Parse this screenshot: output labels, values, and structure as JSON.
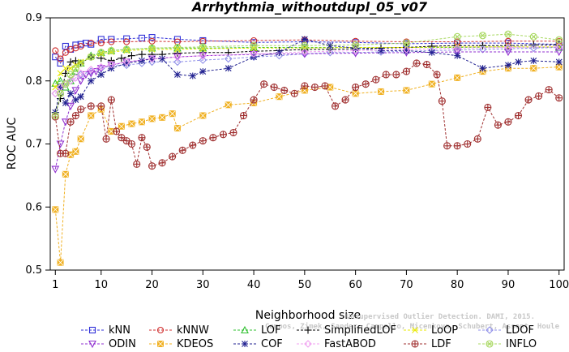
{
  "chart_data": {
    "type": "line",
    "title": "Arrhythmia_withoutdupl_05_v07",
    "xlabel": "Neighborhood size",
    "ylabel": "ROC AUC",
    "xlim": [
      0,
      101
    ],
    "ylim": [
      0.5,
      0.9
    ],
    "xticks": [
      1,
      10,
      20,
      30,
      40,
      50,
      60,
      70,
      80,
      90,
      100
    ],
    "yticks": [
      0.5,
      0.6,
      0.7,
      0.8,
      0.9
    ],
    "xtick_labels": [
      "1",
      "10",
      "20",
      "30",
      "40",
      "50",
      "60",
      "70",
      "80",
      "90",
      "100"
    ],
    "ytick_labels": [
      "0.5",
      "0.6",
      "0.7",
      "0.8",
      "0.9"
    ],
    "grid": false,
    "legend_position": "bottom",
    "watermark": [
      "Unsupervised Outlier Detection. DAMI, 2015.",
      "Campos, Zimek, Sander, Campello, Micenkova, Schubert, Assent, Houle"
    ],
    "series": [
      {
        "name": "kNN",
        "color": "#3030d8",
        "marker": "square",
        "x": [
          1,
          2,
          3,
          4,
          5,
          6,
          7,
          8,
          10,
          12,
          15,
          18,
          20,
          25,
          30,
          40,
          50,
          60,
          70,
          80,
          90,
          100
        ],
        "y": [
          0.838,
          0.828,
          0.855,
          0.85,
          0.857,
          0.858,
          0.86,
          0.858,
          0.866,
          0.866,
          0.867,
          0.868,
          0.869,
          0.866,
          0.864,
          0.861,
          0.862,
          0.861,
          0.859,
          0.86,
          0.86,
          0.858
        ]
      },
      {
        "name": "kNNW",
        "color": "#d03030",
        "marker": "circle",
        "x": [
          1,
          2,
          3,
          4,
          5,
          6,
          8,
          10,
          12,
          15,
          20,
          25,
          30,
          40,
          50,
          60,
          70,
          80,
          90,
          100
        ],
        "y": [
          0.848,
          0.835,
          0.845,
          0.85,
          0.852,
          0.855,
          0.86,
          0.86,
          0.862,
          0.862,
          0.863,
          0.862,
          0.863,
          0.864,
          0.865,
          0.863,
          0.862,
          0.862,
          0.863,
          0.863
        ]
      },
      {
        "name": "LOF",
        "color": "#30c030",
        "marker": "triangle-up",
        "x": [
          1,
          2,
          3,
          4,
          5,
          6,
          8,
          10,
          12,
          15,
          20,
          25,
          30,
          40,
          50,
          60,
          70,
          80,
          90,
          100
        ],
        "y": [
          0.796,
          0.8,
          0.79,
          0.8,
          0.815,
          0.828,
          0.84,
          0.845,
          0.848,
          0.85,
          0.852,
          0.852,
          0.852,
          0.853,
          0.853,
          0.853,
          0.853,
          0.853,
          0.854,
          0.853
        ]
      },
      {
        "name": "SimplifiedLOF",
        "color": "#000000",
        "marker": "plus",
        "x": [
          1,
          2,
          3,
          4,
          5,
          6,
          8,
          10,
          12,
          14,
          16,
          18,
          20,
          22,
          25,
          30,
          35,
          40,
          45,
          50,
          55,
          60,
          65,
          70,
          75,
          80,
          85,
          90,
          95,
          100
        ],
        "y": [
          0.75,
          0.772,
          0.812,
          0.83,
          0.832,
          0.828,
          0.838,
          0.836,
          0.832,
          0.836,
          0.84,
          0.842,
          0.842,
          0.842,
          0.844,
          0.845,
          0.845,
          0.847,
          0.848,
          0.85,
          0.85,
          0.851,
          0.852,
          0.853,
          0.855,
          0.856,
          0.856,
          0.856,
          0.857,
          0.857
        ]
      },
      {
        "name": "LoOP",
        "color": "#e8e800",
        "marker": "x",
        "x": [
          1,
          2,
          3,
          4,
          5,
          6,
          8,
          10,
          12,
          15,
          20,
          25,
          30,
          40,
          50,
          60,
          70,
          80,
          90,
          100
        ],
        "y": [
          0.79,
          0.812,
          0.82,
          0.82,
          0.825,
          0.83,
          0.838,
          0.843,
          0.846,
          0.848,
          0.85,
          0.85,
          0.851,
          0.852,
          0.852,
          0.853,
          0.853,
          0.854,
          0.854,
          0.854
        ]
      },
      {
        "name": "LDOF",
        "color": "#9090e8",
        "marker": "diamond",
        "x": [
          1,
          2,
          3,
          4,
          5,
          6,
          8,
          10,
          12,
          15,
          18,
          20,
          25,
          30,
          35,
          40,
          45,
          50,
          55,
          60,
          65,
          70,
          75,
          80,
          85,
          90,
          95,
          100
        ],
        "y": [
          0.78,
          0.79,
          0.795,
          0.8,
          0.805,
          0.81,
          0.815,
          0.82,
          0.825,
          0.825,
          0.828,
          0.83,
          0.83,
          0.833,
          0.835,
          0.838,
          0.84,
          0.843,
          0.845,
          0.845,
          0.846,
          0.847,
          0.848,
          0.849,
          0.85,
          0.851,
          0.852,
          0.853
        ]
      },
      {
        "name": "ODIN",
        "color": "#9030d0",
        "marker": "triangle-down",
        "x": [
          1,
          2,
          3,
          4,
          5,
          6,
          7,
          8,
          9,
          10,
          12,
          15,
          20,
          25,
          30,
          40,
          50,
          60,
          70,
          80,
          90,
          100
        ],
        "y": [
          0.66,
          0.7,
          0.735,
          0.76,
          0.785,
          0.8,
          0.81,
          0.812,
          0.815,
          0.82,
          0.825,
          0.83,
          0.835,
          0.838,
          0.84,
          0.842,
          0.843,
          0.844,
          0.845,
          0.846,
          0.846,
          0.846
        ]
      },
      {
        "name": "KDEOS",
        "color": "#f0b020",
        "marker": "square-x",
        "x": [
          1,
          2,
          3,
          4,
          5,
          6,
          8,
          10,
          12,
          14,
          16,
          18,
          20,
          22,
          24,
          25,
          30,
          35,
          40,
          45,
          50,
          55,
          60,
          65,
          70,
          75,
          80,
          85,
          90,
          95,
          100
        ],
        "y": [
          0.596,
          0.512,
          0.652,
          0.683,
          0.688,
          0.708,
          0.745,
          0.755,
          0.72,
          0.728,
          0.732,
          0.735,
          0.74,
          0.742,
          0.748,
          0.725,
          0.745,
          0.762,
          0.765,
          0.775,
          0.785,
          0.79,
          0.78,
          0.783,
          0.785,
          0.795,
          0.805,
          0.815,
          0.82,
          0.82,
          0.822
        ]
      },
      {
        "name": "COF",
        "color": "#202090",
        "marker": "asterisk",
        "x": [
          1,
          2,
          3,
          4,
          5,
          6,
          8,
          10,
          12,
          15,
          18,
          20,
          22,
          25,
          28,
          30,
          35,
          40,
          45,
          50,
          55,
          60,
          65,
          70,
          75,
          80,
          85,
          90,
          92,
          95,
          100
        ],
        "y": [
          0.75,
          0.79,
          0.765,
          0.78,
          0.77,
          0.775,
          0.8,
          0.81,
          0.82,
          0.828,
          0.832,
          0.835,
          0.835,
          0.81,
          0.808,
          0.815,
          0.82,
          0.838,
          0.845,
          0.866,
          0.856,
          0.852,
          0.848,
          0.848,
          0.845,
          0.84,
          0.82,
          0.825,
          0.83,
          0.832,
          0.83
        ]
      },
      {
        "name": "FastABOD",
        "color": "#f0a0f0",
        "marker": "diamond",
        "x": [
          1,
          2,
          3,
          4,
          5,
          6,
          8,
          10,
          12,
          15,
          20,
          25,
          30,
          40,
          50,
          60,
          70,
          80,
          90,
          100
        ],
        "y": [
          0.78,
          0.79,
          0.795,
          0.8,
          0.805,
          0.812,
          0.818,
          0.822,
          0.826,
          0.83,
          0.835,
          0.838,
          0.84,
          0.843,
          0.846,
          0.848,
          0.85,
          0.852,
          0.853,
          0.854
        ]
      },
      {
        "name": "LDF",
        "color": "#a03030",
        "marker": "circle-plus",
        "x": [
          1,
          2,
          3,
          4,
          5,
          6,
          8,
          10,
          11,
          12,
          13,
          14,
          15,
          16,
          17,
          18,
          19,
          20,
          22,
          24,
          26,
          28,
          30,
          32,
          34,
          36,
          38,
          40,
          42,
          44,
          46,
          48,
          50,
          52,
          54,
          56,
          58,
          60,
          62,
          64,
          66,
          68,
          70,
          72,
          74,
          76,
          77,
          78,
          80,
          82,
          84,
          86,
          88,
          90,
          92,
          94,
          96,
          98,
          100
        ],
        "y": [
          0.743,
          0.685,
          0.685,
          0.735,
          0.745,
          0.755,
          0.76,
          0.76,
          0.708,
          0.77,
          0.72,
          0.71,
          0.705,
          0.7,
          0.668,
          0.71,
          0.695,
          0.665,
          0.67,
          0.68,
          0.69,
          0.698,
          0.705,
          0.71,
          0.715,
          0.718,
          0.745,
          0.77,
          0.795,
          0.79,
          0.785,
          0.78,
          0.792,
          0.79,
          0.792,
          0.76,
          0.77,
          0.79,
          0.795,
          0.802,
          0.81,
          0.81,
          0.815,
          0.828,
          0.826,
          0.81,
          0.768,
          0.697,
          0.697,
          0.7,
          0.708,
          0.758,
          0.73,
          0.735,
          0.745,
          0.77,
          0.776,
          0.786,
          0.773
        ]
      },
      {
        "name": "INFLO",
        "color": "#a8d860",
        "marker": "circle-x",
        "x": [
          1,
          2,
          3,
          4,
          5,
          6,
          8,
          10,
          12,
          15,
          20,
          25,
          30,
          40,
          50,
          60,
          70,
          80,
          85,
          90,
          95,
          100
        ],
        "y": [
          0.745,
          0.78,
          0.795,
          0.81,
          0.82,
          0.828,
          0.838,
          0.845,
          0.848,
          0.85,
          0.852,
          0.853,
          0.854,
          0.856,
          0.856,
          0.857,
          0.86,
          0.87,
          0.872,
          0.874,
          0.87,
          0.865
        ]
      }
    ]
  }
}
